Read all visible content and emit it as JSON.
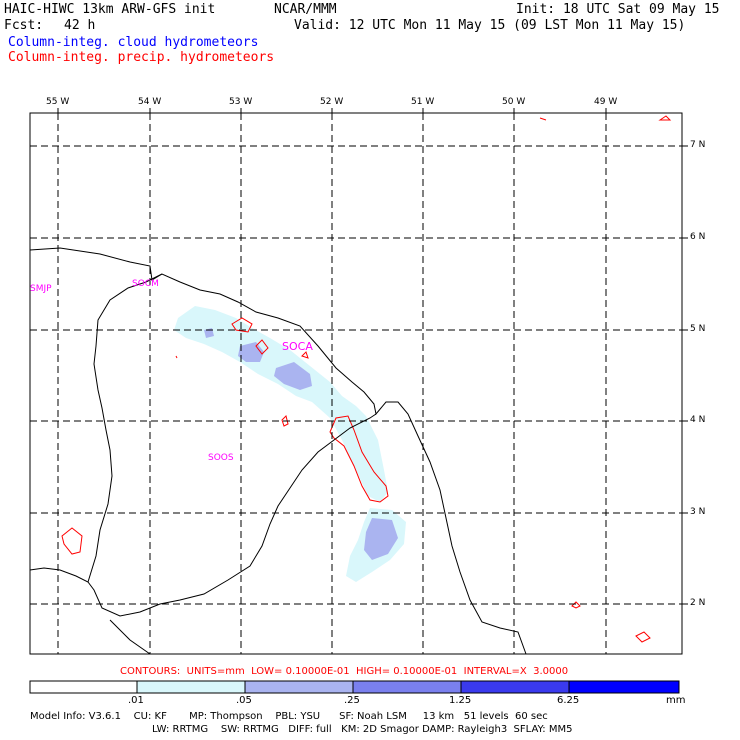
{
  "header": {
    "model_title": "HAIC-HIWC 13km ARW-GFS init",
    "center": "NCAR/MMM",
    "init": "Init: 18 UTC Sat 09 May 15",
    "fcst_label": "Fcst:",
    "fcst_value": "42 h",
    "valid": "Valid: 12 UTC Mon 11 May 15 (09 LST Mon 11 May 15)",
    "field1": "Column-integ. cloud hydrometeors",
    "field2": "Column-integ. precip. hydrometeors"
  },
  "colors": {
    "field1": "#0000ff",
    "field2": "#ff0000",
    "stations": "#ff00ff",
    "shade_light": "#d9f7fb",
    "shade_mid": "#aab4f0",
    "shade_dark": "#7a80ee",
    "shade_deep": "#2a2aee",
    "shade_top": "#0000ff"
  },
  "map": {
    "lon_labels": [
      "55 W",
      "54 W",
      "53 W",
      "52 W",
      "51 W",
      "50 W",
      "49 W"
    ],
    "lat_labels": [
      "7 N",
      "6 N",
      "5 N",
      "4 N",
      "3 N",
      "2 N"
    ],
    "stations": [
      "SMJP",
      "SOCM",
      "SOCA",
      "SOOS"
    ]
  },
  "contours_line": "CONTOURS:  UNITS=mm  LOW= 0.10000E-01  HIGH= 0.10000E-01  INTERVAL=X  3.0000",
  "colorbar": {
    "ticks": [
      ".01",
      ".05",
      ".25",
      "1.25",
      "6.25"
    ],
    "unit": "mm"
  },
  "model_info": {
    "line1": "Model Info: V3.6.1    CU: KF       MP: Thompson    PBL: YSU      SF: Noah LSM     13 km   51 levels  60 sec",
    "line2": "LW: RRTMG    SW: RRTMG   DIFF: full   KM: 2D Smagor DAMP: Rayleigh3  SFLAY: MM5"
  }
}
